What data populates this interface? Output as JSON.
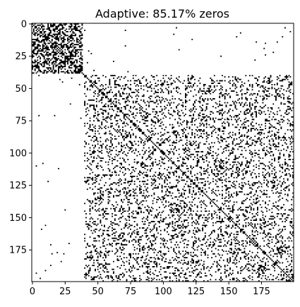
{
  "chart_data": {
    "type": "heatmap",
    "title": "Adaptive: 85.17% zeros",
    "xlabel": "",
    "ylabel": "",
    "shape": [
      200,
      200
    ],
    "sparsity_percent_zeros": 85.17,
    "cmap": "binary (white = zero, black = non-zero)",
    "grid": false,
    "x_ticks": [
      0,
      25,
      50,
      75,
      100,
      125,
      150,
      175
    ],
    "y_ticks": [
      0,
      25,
      50,
      75,
      100,
      125,
      150,
      175
    ],
    "xlim": [
      -0.5,
      199.5
    ],
    "ylim": [
      199.5,
      -0.5
    ],
    "blocks": [
      {
        "rows": [
          0,
          38
        ],
        "cols": [
          0,
          38
        ],
        "density": 0.5
      },
      {
        "rows": [
          40,
          199
        ],
        "cols": [
          40,
          199
        ],
        "density": 0.2
      }
    ],
    "background_density": 0.004,
    "diagonal": "non-zero",
    "colors": {
      "zero": "#ffffff",
      "nonzero": "#000000"
    }
  }
}
